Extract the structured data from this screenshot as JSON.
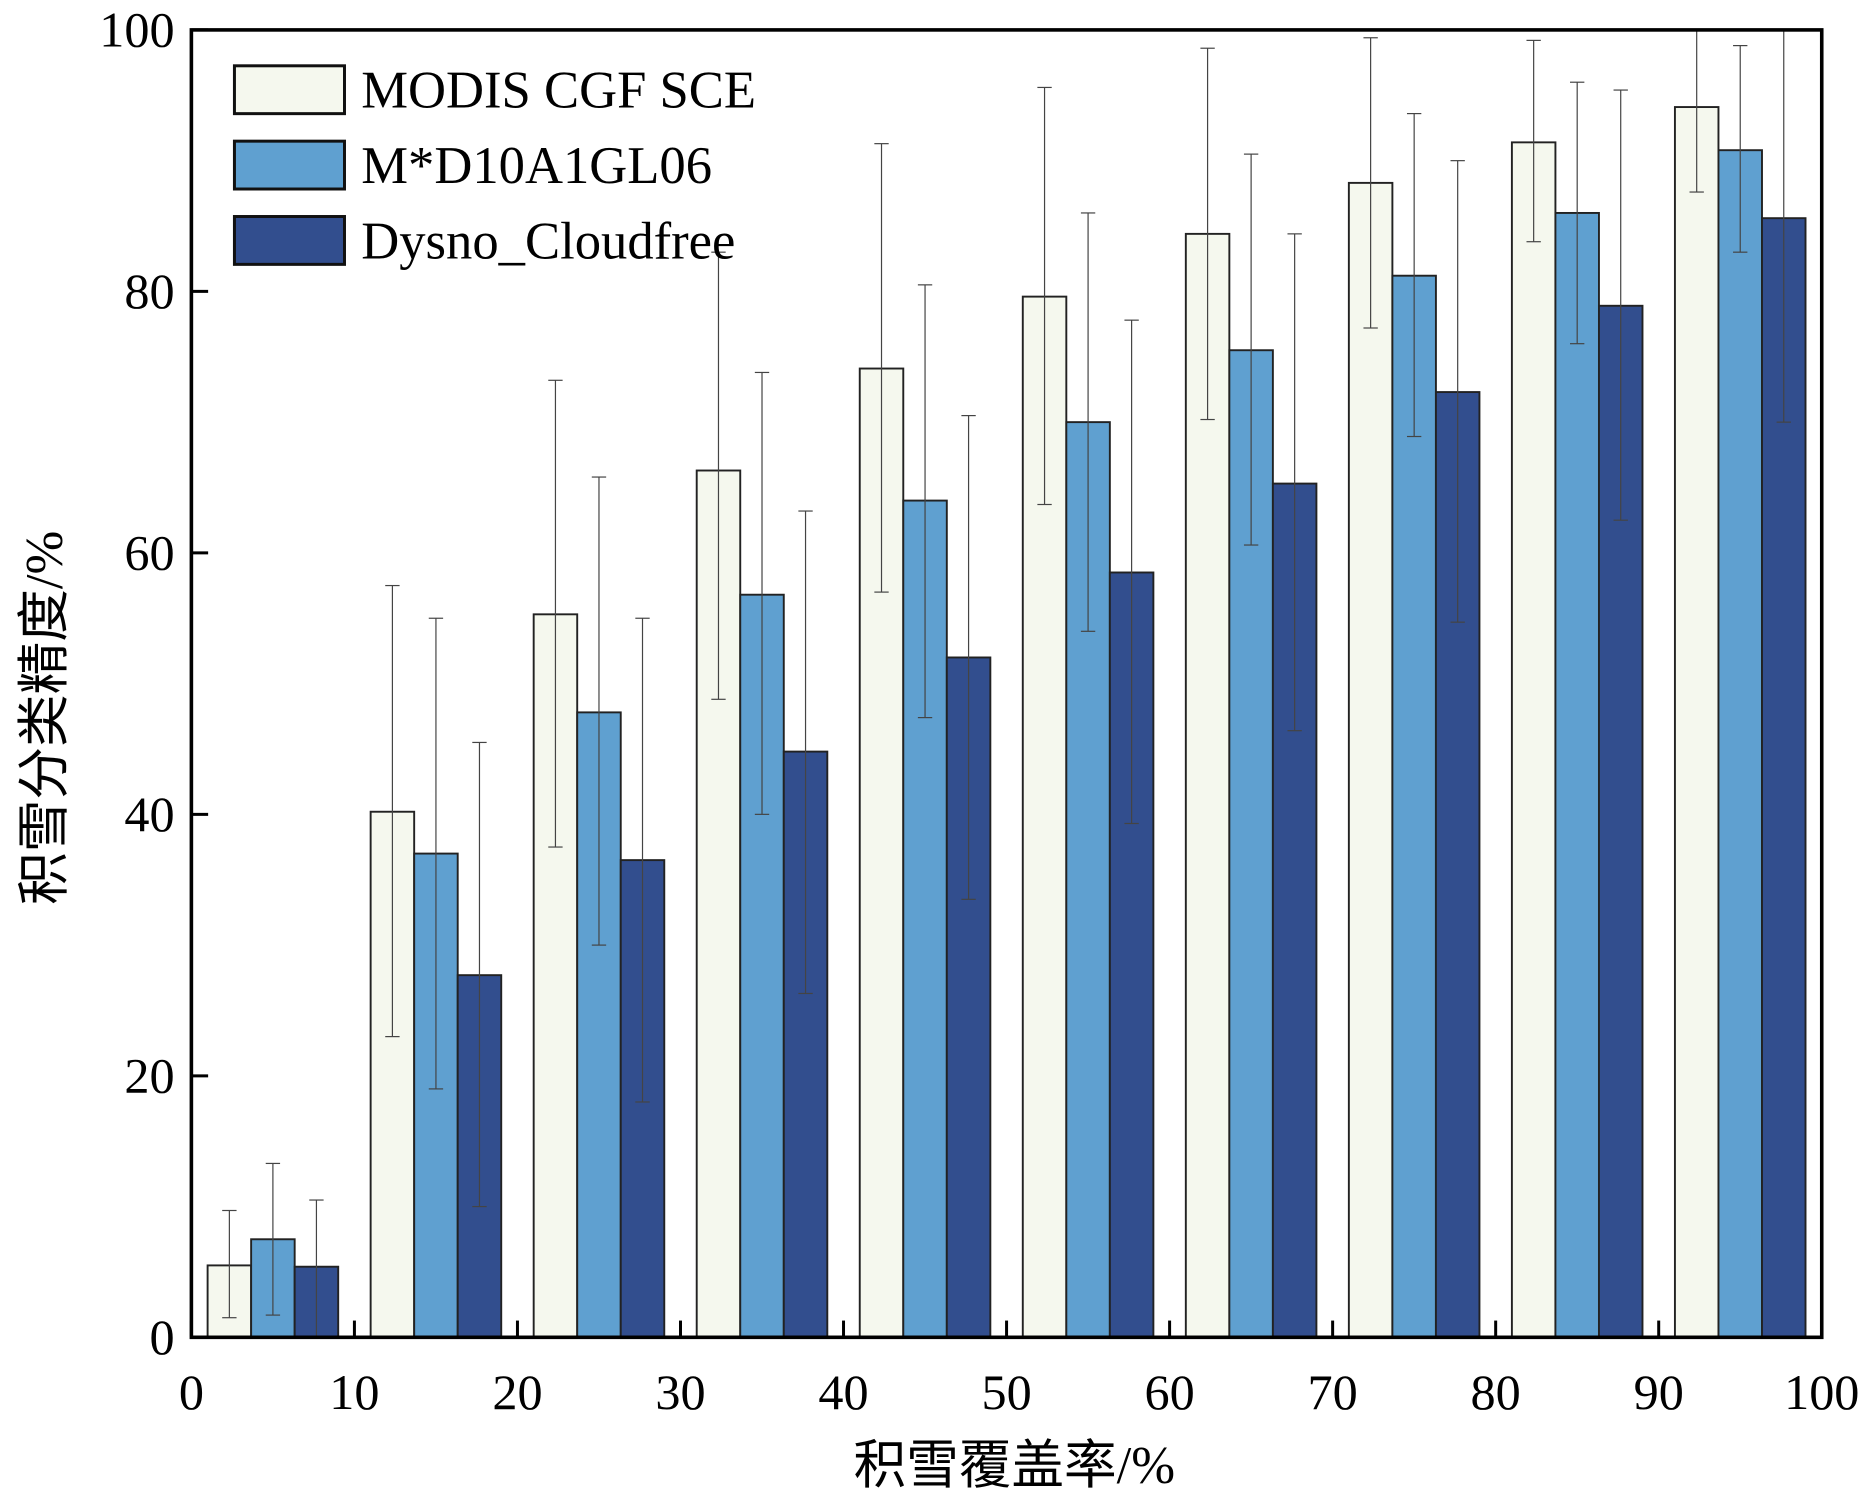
{
  "chart_data": {
    "type": "bar",
    "title": "",
    "xlabel": "积雪覆盖率/%",
    "ylabel": "积雪分类精度/%",
    "xlim": [
      0,
      100
    ],
    "ylim": [
      0,
      100
    ],
    "x_ticks": [
      "0",
      "10",
      "20",
      "30",
      "40",
      "50",
      "60",
      "70",
      "80",
      "90",
      "100"
    ],
    "y_ticks": [
      "0",
      "20",
      "40",
      "60",
      "80",
      "100"
    ],
    "bin_centers": [
      5,
      15,
      25,
      35,
      45,
      55,
      65,
      75,
      85,
      95
    ],
    "legend_position": "top-left",
    "grid": false,
    "series": [
      {
        "name": "MODIS CGF SCE",
        "color": "#f5f8ee",
        "values": [
          5.5,
          40.2,
          55.3,
          66.3,
          74.1,
          79.6,
          84.4,
          88.3,
          91.4,
          94.1
        ],
        "err_low": [
          1.5,
          23,
          37.5,
          48.8,
          57,
          63.7,
          70.2,
          77.2,
          83.8,
          87.6
        ],
        "err_high": [
          9.7,
          57.5,
          73.2,
          83,
          91.3,
          95.6,
          98.6,
          99.4,
          99.2,
          100.5
        ]
      },
      {
        "name": "M*D10A1GL06",
        "color": "#5fa0d0",
        "values": [
          7.5,
          37,
          47.8,
          56.8,
          64,
          70,
          75.5,
          81.2,
          86,
          90.8
        ],
        "err_low": [
          1.7,
          19,
          30,
          40,
          47.4,
          54,
          60.6,
          68.9,
          76,
          83
        ],
        "err_high": [
          13.3,
          55,
          65.8,
          73.8,
          80.5,
          86,
          90.5,
          93.6,
          96,
          98.8
        ]
      },
      {
        "name": "Dysno_Cloudfree",
        "color": "#324e8e",
        "values": [
          5.4,
          27.7,
          36.5,
          44.8,
          52,
          58.5,
          65.3,
          72.3,
          78.9,
          85.6
        ],
        "err_low": [
          0,
          10,
          18,
          26.3,
          33.5,
          39.3,
          46.4,
          54.7,
          62.5,
          70
        ],
        "err_high": [
          10.5,
          45.5,
          55,
          63.2,
          70.5,
          77.8,
          84.4,
          90,
          95.4,
          101
        ]
      }
    ]
  }
}
